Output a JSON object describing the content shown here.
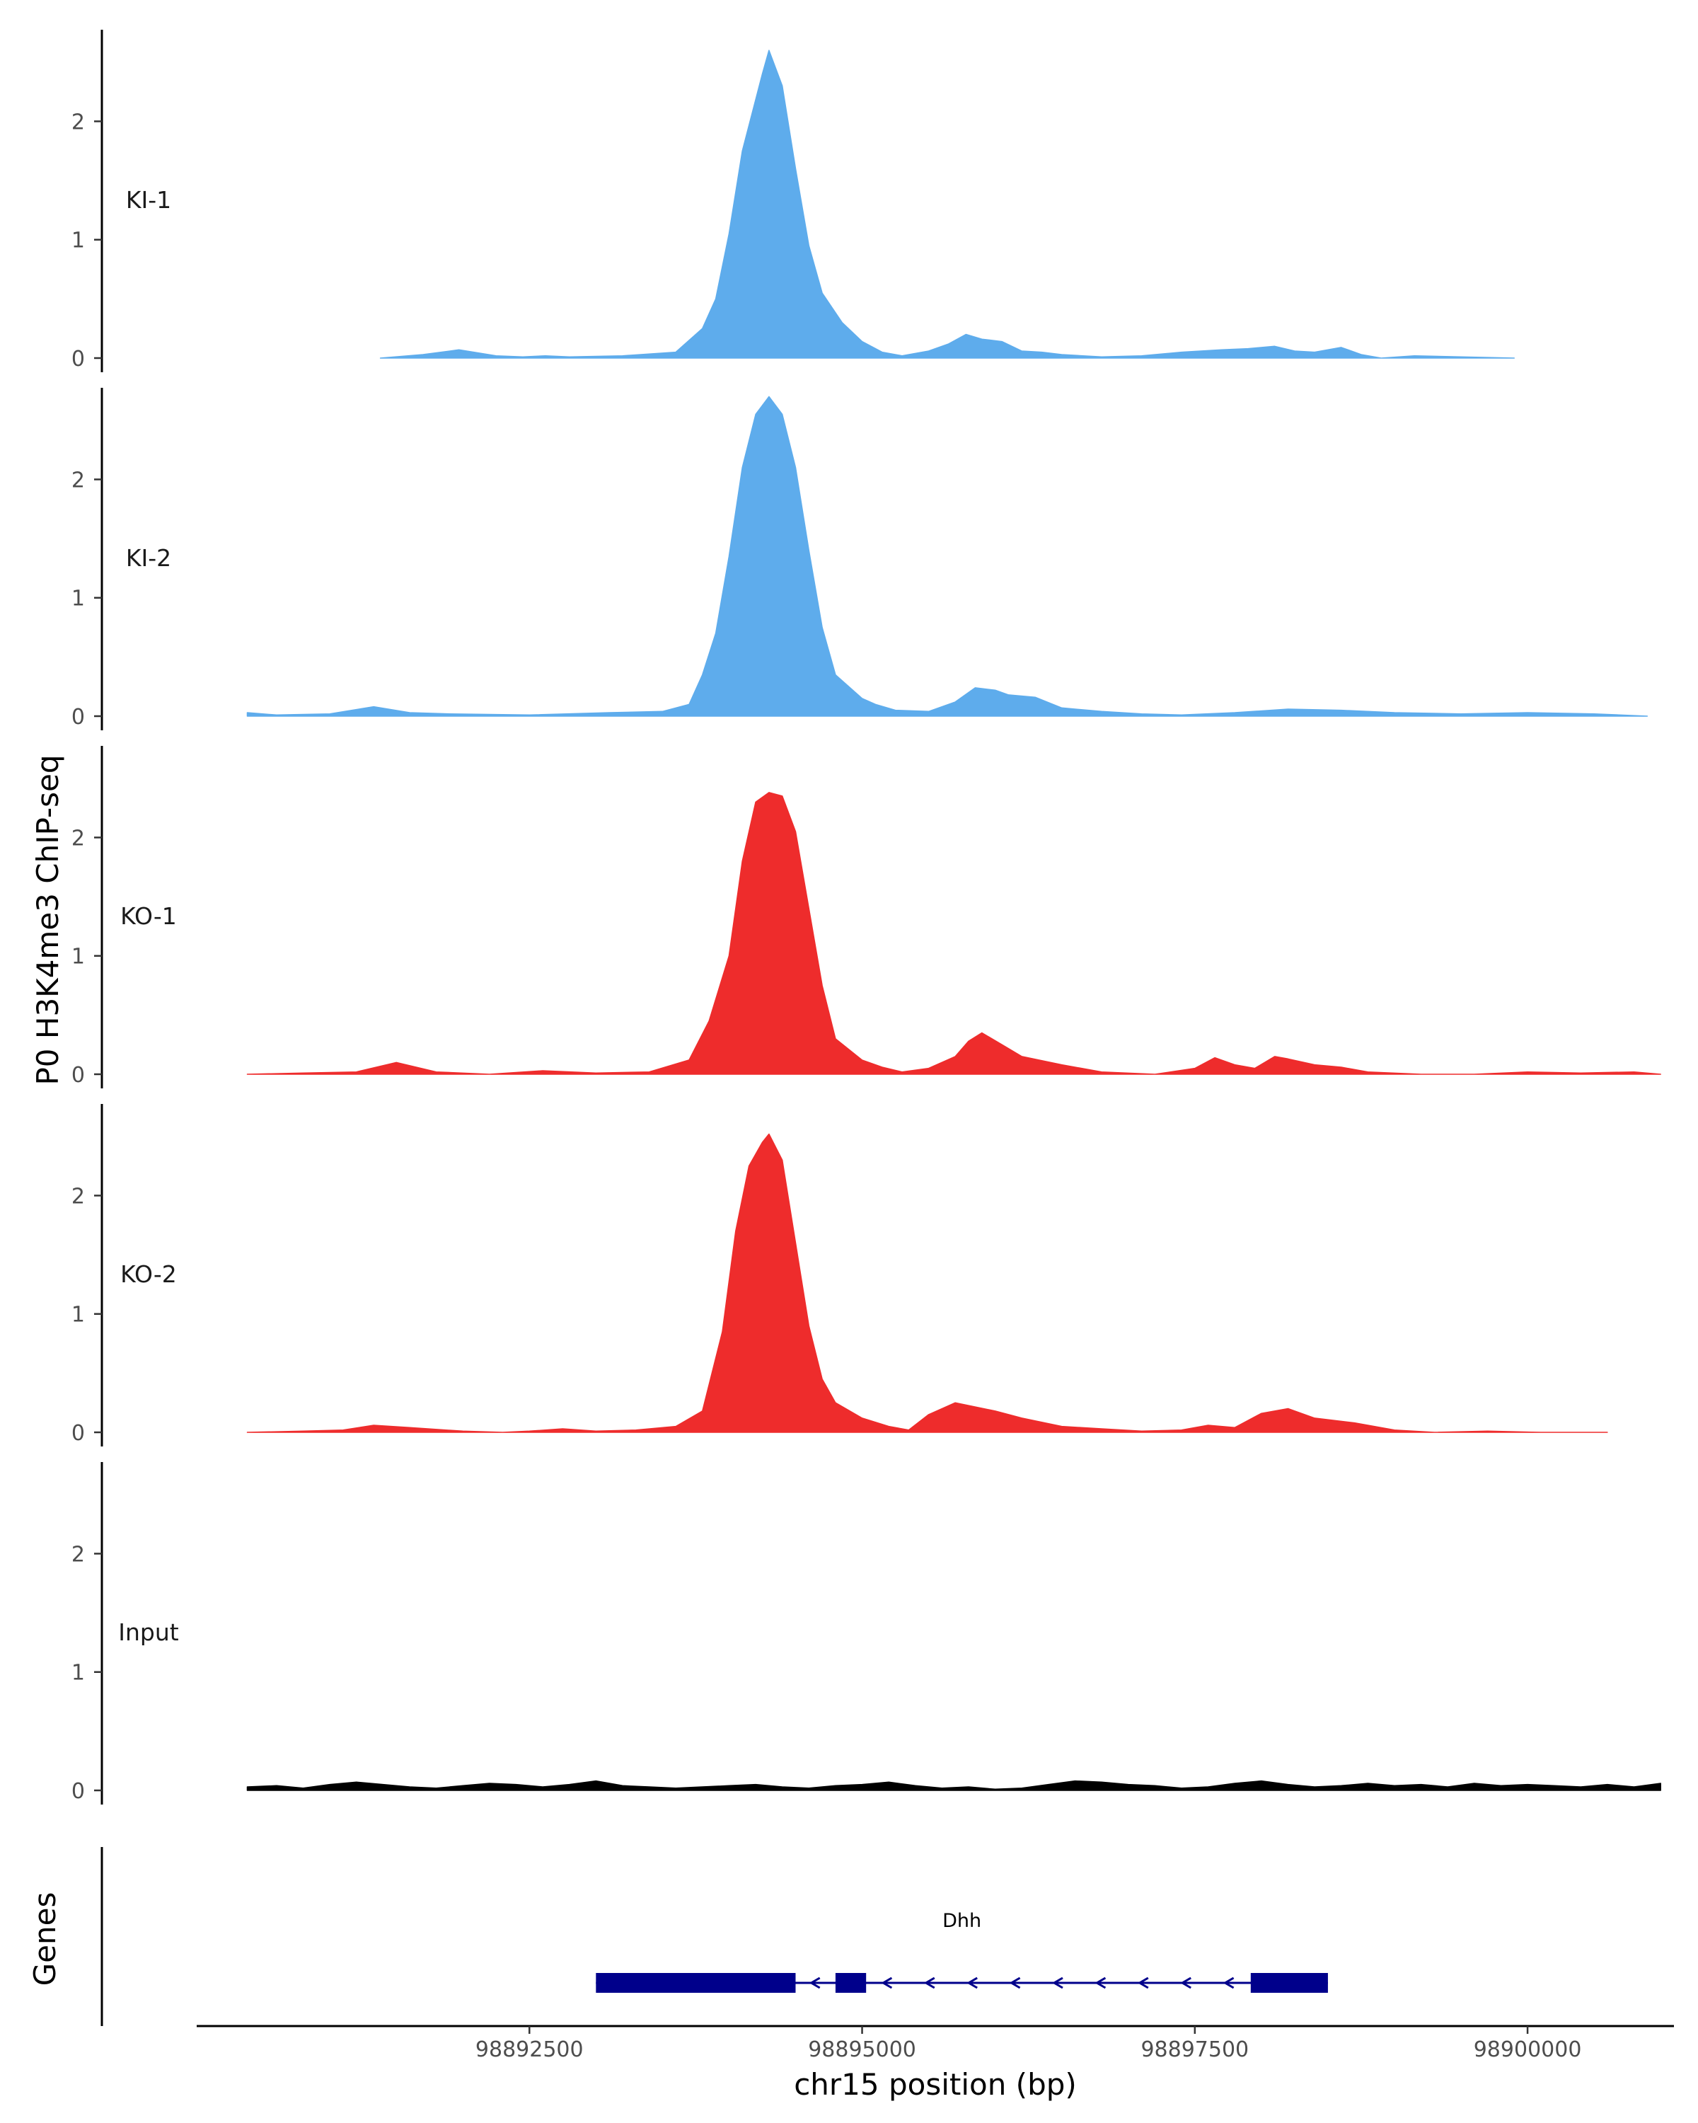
{
  "chart_data": {
    "type": "area",
    "ylabel": "P0 H3K4me3 ChIP-seq",
    "xlabel": "chr15 position (bp)",
    "xlim": [
      98890000,
      98901100
    ],
    "ylim": [
      0,
      2.75
    ],
    "x_ticks": [
      98892500,
      98895000,
      98897500,
      98900000
    ],
    "y_ticks": [
      0,
      1,
      2
    ],
    "colors": {
      "KI": "#5EACEC",
      "KO": "#EE2C2C",
      "Input": "#000000",
      "gene": "#00008B",
      "axis": "#000000"
    },
    "series": [
      {
        "name": "KI-1",
        "color": "#5EACEC",
        "x": [
          98891380,
          98891700,
          98891970,
          98892250,
          98892450,
          98892620,
          98892800,
          98893200,
          98893600,
          98893800,
          98893900,
          98894000,
          98894100,
          98894250,
          98894300,
          98894400,
          98894500,
          98894600,
          98894700,
          98894850,
          98895000,
          98895150,
          98895300,
          98895500,
          98895650,
          98895780,
          98895900,
          98896050,
          98896200,
          98896350,
          98896500,
          98896800,
          98897100,
          98897400,
          98897700,
          98897900,
          98898100,
          98898250,
          98898400,
          98898600,
          98898750,
          98898900,
          98899150,
          98899500,
          98899900
        ],
        "values": [
          0,
          0.03,
          0.07,
          0.02,
          0.01,
          0.02,
          0.01,
          0.02,
          0.05,
          0.25,
          0.5,
          1.05,
          1.75,
          2.4,
          2.6,
          2.3,
          1.6,
          0.95,
          0.55,
          0.3,
          0.14,
          0.05,
          0.02,
          0.06,
          0.12,
          0.2,
          0.16,
          0.14,
          0.06,
          0.05,
          0.03,
          0.01,
          0.02,
          0.05,
          0.07,
          0.08,
          0.1,
          0.06,
          0.05,
          0.09,
          0.03,
          0,
          0.02,
          0.01,
          0
        ]
      },
      {
        "name": "KI-2",
        "color": "#5EACEC",
        "x": [
          98890380,
          98890600,
          98891000,
          98891330,
          98891600,
          98891900,
          98892500,
          98893100,
          98893500,
          98893700,
          98893800,
          98893900,
          98894000,
          98894100,
          98894200,
          98894300,
          98894400,
          98894500,
          98894600,
          98894700,
          98894800,
          98895000,
          98895100,
          98895250,
          98895500,
          98895700,
          98895850,
          98896000,
          98896100,
          98896300,
          98896500,
          98896800,
          98897100,
          98897400,
          98897800,
          98898200,
          98898600,
          98899000,
          98899500,
          98900000,
          98900500,
          98900900
        ],
        "values": [
          0.03,
          0.01,
          0.02,
          0.08,
          0.03,
          0.02,
          0.01,
          0.03,
          0.04,
          0.1,
          0.35,
          0.7,
          1.35,
          2.1,
          2.55,
          2.7,
          2.55,
          2.1,
          1.4,
          0.75,
          0.35,
          0.15,
          0.1,
          0.05,
          0.04,
          0.12,
          0.24,
          0.22,
          0.18,
          0.16,
          0.07,
          0.04,
          0.02,
          0.01,
          0.03,
          0.06,
          0.05,
          0.03,
          0.02,
          0.03,
          0.02,
          0
        ]
      },
      {
        "name": "KO-1",
        "color": "#EE2C2C",
        "x": [
          98890380,
          98890800,
          98891200,
          98891500,
          98891800,
          98892200,
          98892600,
          98893000,
          98893400,
          98893700,
          98893850,
          98894000,
          98894100,
          98894200,
          98894300,
          98894400,
          98894500,
          98894600,
          98894700,
          98894800,
          98895000,
          98895150,
          98895300,
          98895500,
          98895700,
          98895800,
          98895900,
          98896050,
          98896200,
          98896500,
          98896800,
          98897200,
          98897500,
          98897650,
          98897800,
          98897950,
          98898100,
          98898200,
          98898400,
          98898600,
          98898800,
          98899200,
          98899600,
          98900000,
          98900400,
          98900800,
          98901000
        ],
        "values": [
          0,
          0.01,
          0.02,
          0.1,
          0.02,
          0,
          0.03,
          0.01,
          0.02,
          0.12,
          0.45,
          1.0,
          1.8,
          2.3,
          2.38,
          2.35,
          2.05,
          1.4,
          0.75,
          0.3,
          0.12,
          0.06,
          0.02,
          0.05,
          0.15,
          0.28,
          0.35,
          0.25,
          0.15,
          0.08,
          0.02,
          0,
          0.05,
          0.14,
          0.08,
          0.05,
          0.15,
          0.13,
          0.08,
          0.06,
          0.02,
          0,
          0,
          0.02,
          0.01,
          0.02,
          0
        ]
      },
      {
        "name": "KO-2",
        "color": "#EE2C2C",
        "x": [
          98890380,
          98890800,
          98891100,
          98891330,
          98891600,
          98892000,
          98892300,
          98892500,
          98892750,
          98893000,
          98893300,
          98893600,
          98893800,
          98893950,
          98894050,
          98894150,
          98894250,
          98894300,
          98894400,
          98894500,
          98894600,
          98894700,
          98894800,
          98895000,
          98895200,
          98895350,
          98895500,
          98895700,
          98896000,
          98896200,
          98896500,
          98896800,
          98897100,
          98897400,
          98897600,
          98897800,
          98898000,
          98898200,
          98898400,
          98898700,
          98899000,
          98899300,
          98899700,
          98900100,
          98900600
        ],
        "values": [
          0,
          0.01,
          0.02,
          0.06,
          0.04,
          0.01,
          0,
          0.01,
          0.03,
          0.01,
          0.02,
          0.05,
          0.18,
          0.85,
          1.7,
          2.25,
          2.45,
          2.52,
          2.3,
          1.6,
          0.9,
          0.45,
          0.25,
          0.12,
          0.05,
          0.02,
          0.15,
          0.25,
          0.18,
          0.12,
          0.05,
          0.03,
          0.01,
          0.02,
          0.06,
          0.04,
          0.16,
          0.2,
          0.12,
          0.08,
          0.02,
          0,
          0.01,
          0,
          0
        ]
      },
      {
        "name": "Input",
        "color": "#000000",
        "x": [
          98890380,
          98890600,
          98890800,
          98891000,
          98891200,
          98891400,
          98891600,
          98891800,
          98892000,
          98892200,
          98892400,
          98892600,
          98892800,
          98893000,
          98893200,
          98893400,
          98893600,
          98893800,
          98894000,
          98894200,
          98894400,
          98894600,
          98894800,
          98895000,
          98895200,
          98895400,
          98895600,
          98895800,
          98896000,
          98896200,
          98896400,
          98896600,
          98896800,
          98897000,
          98897200,
          98897400,
          98897600,
          98897800,
          98898000,
          98898200,
          98898400,
          98898600,
          98898800,
          98899000,
          98899200,
          98899400,
          98899600,
          98899800,
          98900000,
          98900200,
          98900400,
          98900600,
          98900800,
          98901000
        ],
        "values": [
          0.03,
          0.04,
          0.02,
          0.05,
          0.07,
          0.05,
          0.03,
          0.02,
          0.04,
          0.06,
          0.05,
          0.03,
          0.05,
          0.08,
          0.04,
          0.03,
          0.02,
          0.03,
          0.04,
          0.05,
          0.03,
          0.02,
          0.04,
          0.05,
          0.07,
          0.04,
          0.02,
          0.03,
          0.01,
          0.02,
          0.05,
          0.08,
          0.07,
          0.05,
          0.04,
          0.02,
          0.03,
          0.06,
          0.08,
          0.05,
          0.03,
          0.04,
          0.06,
          0.04,
          0.05,
          0.03,
          0.06,
          0.04,
          0.05,
          0.04,
          0.03,
          0.05,
          0.03,
          0.06
        ]
      }
    ],
    "gene_track": {
      "label": "Genes",
      "gene_name": "Dhh",
      "strand": "-",
      "start": 98893000,
      "end": 98898500,
      "exons": [
        {
          "start": 98893000,
          "end": 98894500
        },
        {
          "start": 98894800,
          "end": 98895030
        },
        {
          "start": 98897920,
          "end": 98898500
        }
      ]
    }
  }
}
